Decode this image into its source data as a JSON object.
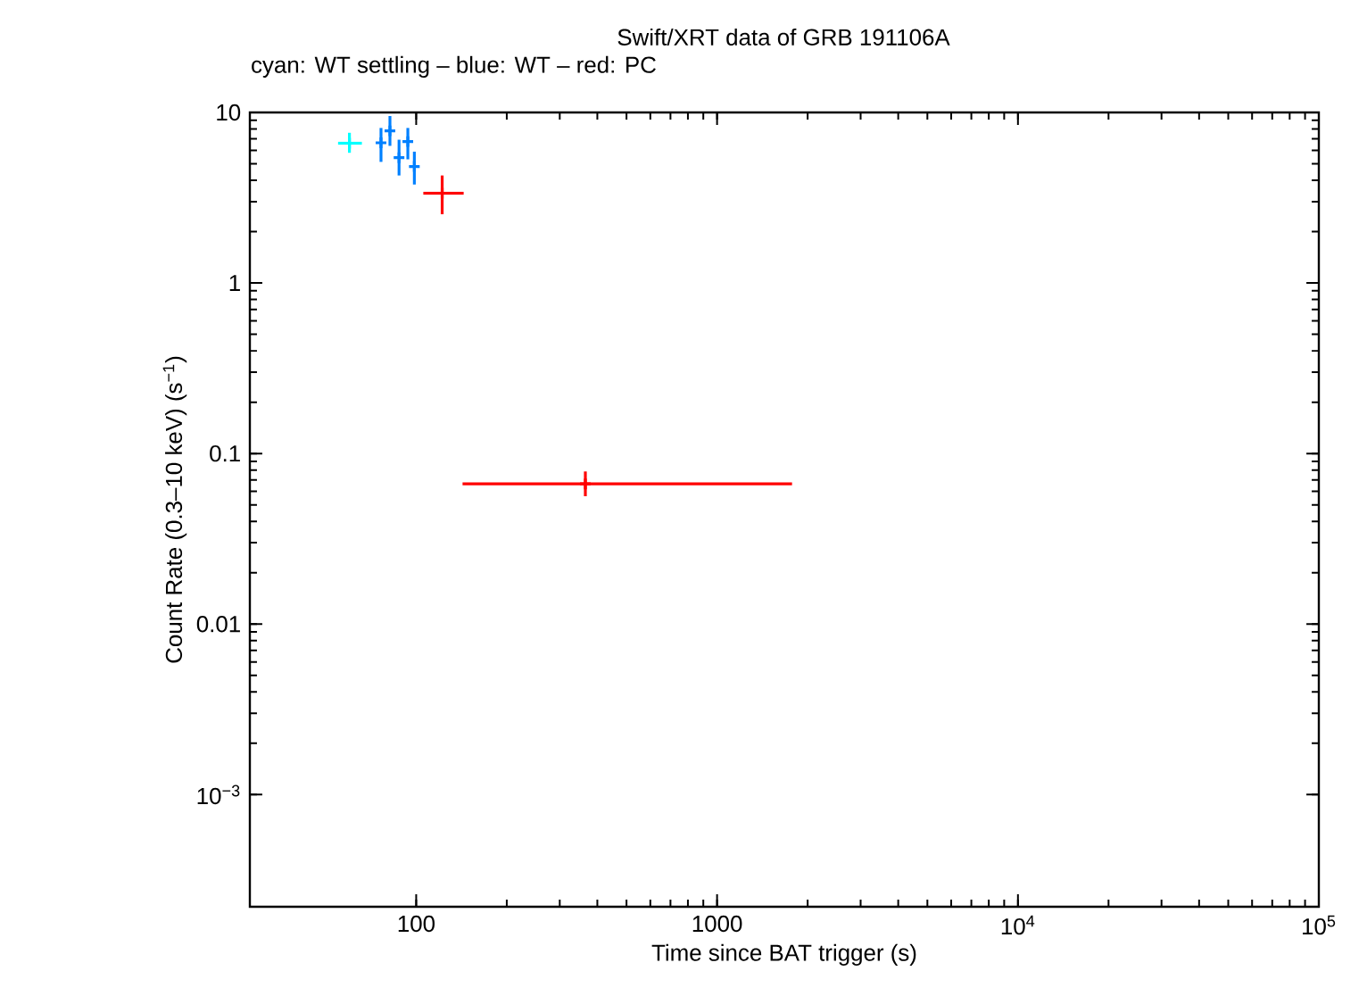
{
  "chart_data": {
    "type": "scatter",
    "title": "Swift/XRT data of GRB 191106A",
    "subtitle": "cyan: WT settling – blue: WT – red: PC",
    "xlabel": "Time since BAT trigger (s)",
    "ylabel": "Count Rate (0.3–10 keV) (s$^{−1}$)",
    "log": "xy",
    "marker": "cross",
    "grid": false,
    "xlim": [
      28,
      100000
    ],
    "ylim": [
      0.00022,
      10
    ],
    "xticks": [
      100,
      1000,
      {
        "value": 10000,
        "label": "10$^{4}$"
      },
      {
        "value": 100000,
        "label": "10$^{5}$"
      }
    ],
    "yticks": [
      {
        "value": 0.001,
        "label": "10$^{−3}$"
      },
      0.01,
      0.1,
      1,
      10
    ],
    "series": [
      {
        "color": "#00ffff",
        "x": [
          60
        ],
        "values": [
          6.6
        ],
        "errors": [
          [
            5.8,
            7.6
          ]
        ],
        "xerrors": [
          [
            55,
            66
          ]
        ]
      },
      {
        "color": "#0080ff",
        "x": [
          76.4,
          81.8,
          87.7,
          93.8,
          98.6
        ],
        "values": [
          6.64,
          7.8,
          5.43,
          6.75,
          4.82
        ],
        "errors": [
          [
            5.13,
            8.11
          ],
          [
            6.37,
            9.53
          ],
          [
            4.27,
            6.92
          ],
          [
            5.31,
            8.11
          ],
          [
            3.78,
            5.89
          ]
        ]
      },
      {
        "color": "#ff0000",
        "x": [
          122,
          365
        ],
        "values": [
          3.36,
          0.0664
        ],
        "errors": [
          [
            2.53,
            4.27
          ],
          [
            0.0562,
            0.0785
          ]
        ],
        "xerrors": [
          [
            105.6,
            143.8
          ],
          [
            142.6,
            1775
          ]
        ]
      }
    ]
  }
}
